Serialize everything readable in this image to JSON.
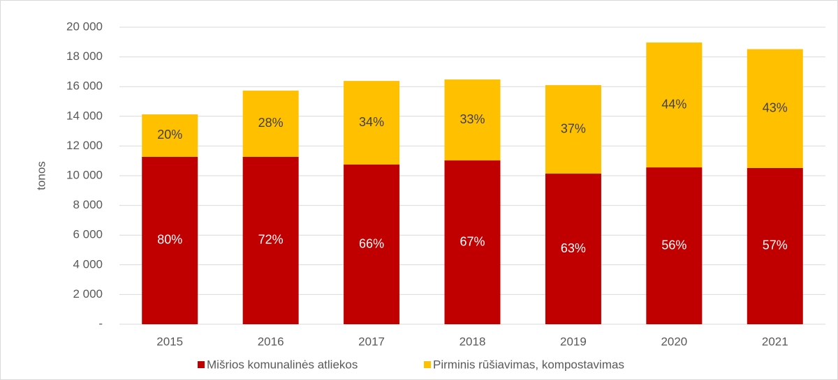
{
  "chart_data": {
    "type": "stacked_bar",
    "y_label": "tonos",
    "categories": [
      "2015",
      "2016",
      "2017",
      "2018",
      "2019",
      "2020",
      "2021"
    ],
    "series": [
      {
        "name": "Mišrios komunalinės atliekos",
        "color": "#c00000",
        "values": [
          11270,
          11270,
          10750,
          11030,
          10140,
          10560,
          10520
        ],
        "value_labels": [
          "80%",
          "72%",
          "66%",
          "67%",
          "63%",
          "56%",
          "57%"
        ]
      },
      {
        "name": "Pirminis rūšiavimas, kompostavimas",
        "color": "#ffc000",
        "values": [
          2860,
          4460,
          5630,
          5450,
          5960,
          8410,
          8000
        ],
        "value_labels": [
          "20%",
          "28%",
          "34%",
          "33%",
          "37%",
          "44%",
          "43%"
        ]
      }
    ],
    "ylim": [
      0,
      20000
    ],
    "yticks": [
      {
        "value": 0,
        "label": "-"
      },
      {
        "value": 2000,
        "label": "2 000"
      },
      {
        "value": 4000,
        "label": "4 000"
      },
      {
        "value": 6000,
        "label": "6 000"
      },
      {
        "value": 8000,
        "label": "8 000"
      },
      {
        "value": 10000,
        "label": "10 000"
      },
      {
        "value": 12000,
        "label": "12 000"
      },
      {
        "value": 14000,
        "label": "14 000"
      },
      {
        "value": 16000,
        "label": "16 000"
      },
      {
        "value": 18000,
        "label": "18 000"
      },
      {
        "value": 20000,
        "label": "20 000"
      }
    ],
    "grid": true,
    "legend": "bottom"
  }
}
